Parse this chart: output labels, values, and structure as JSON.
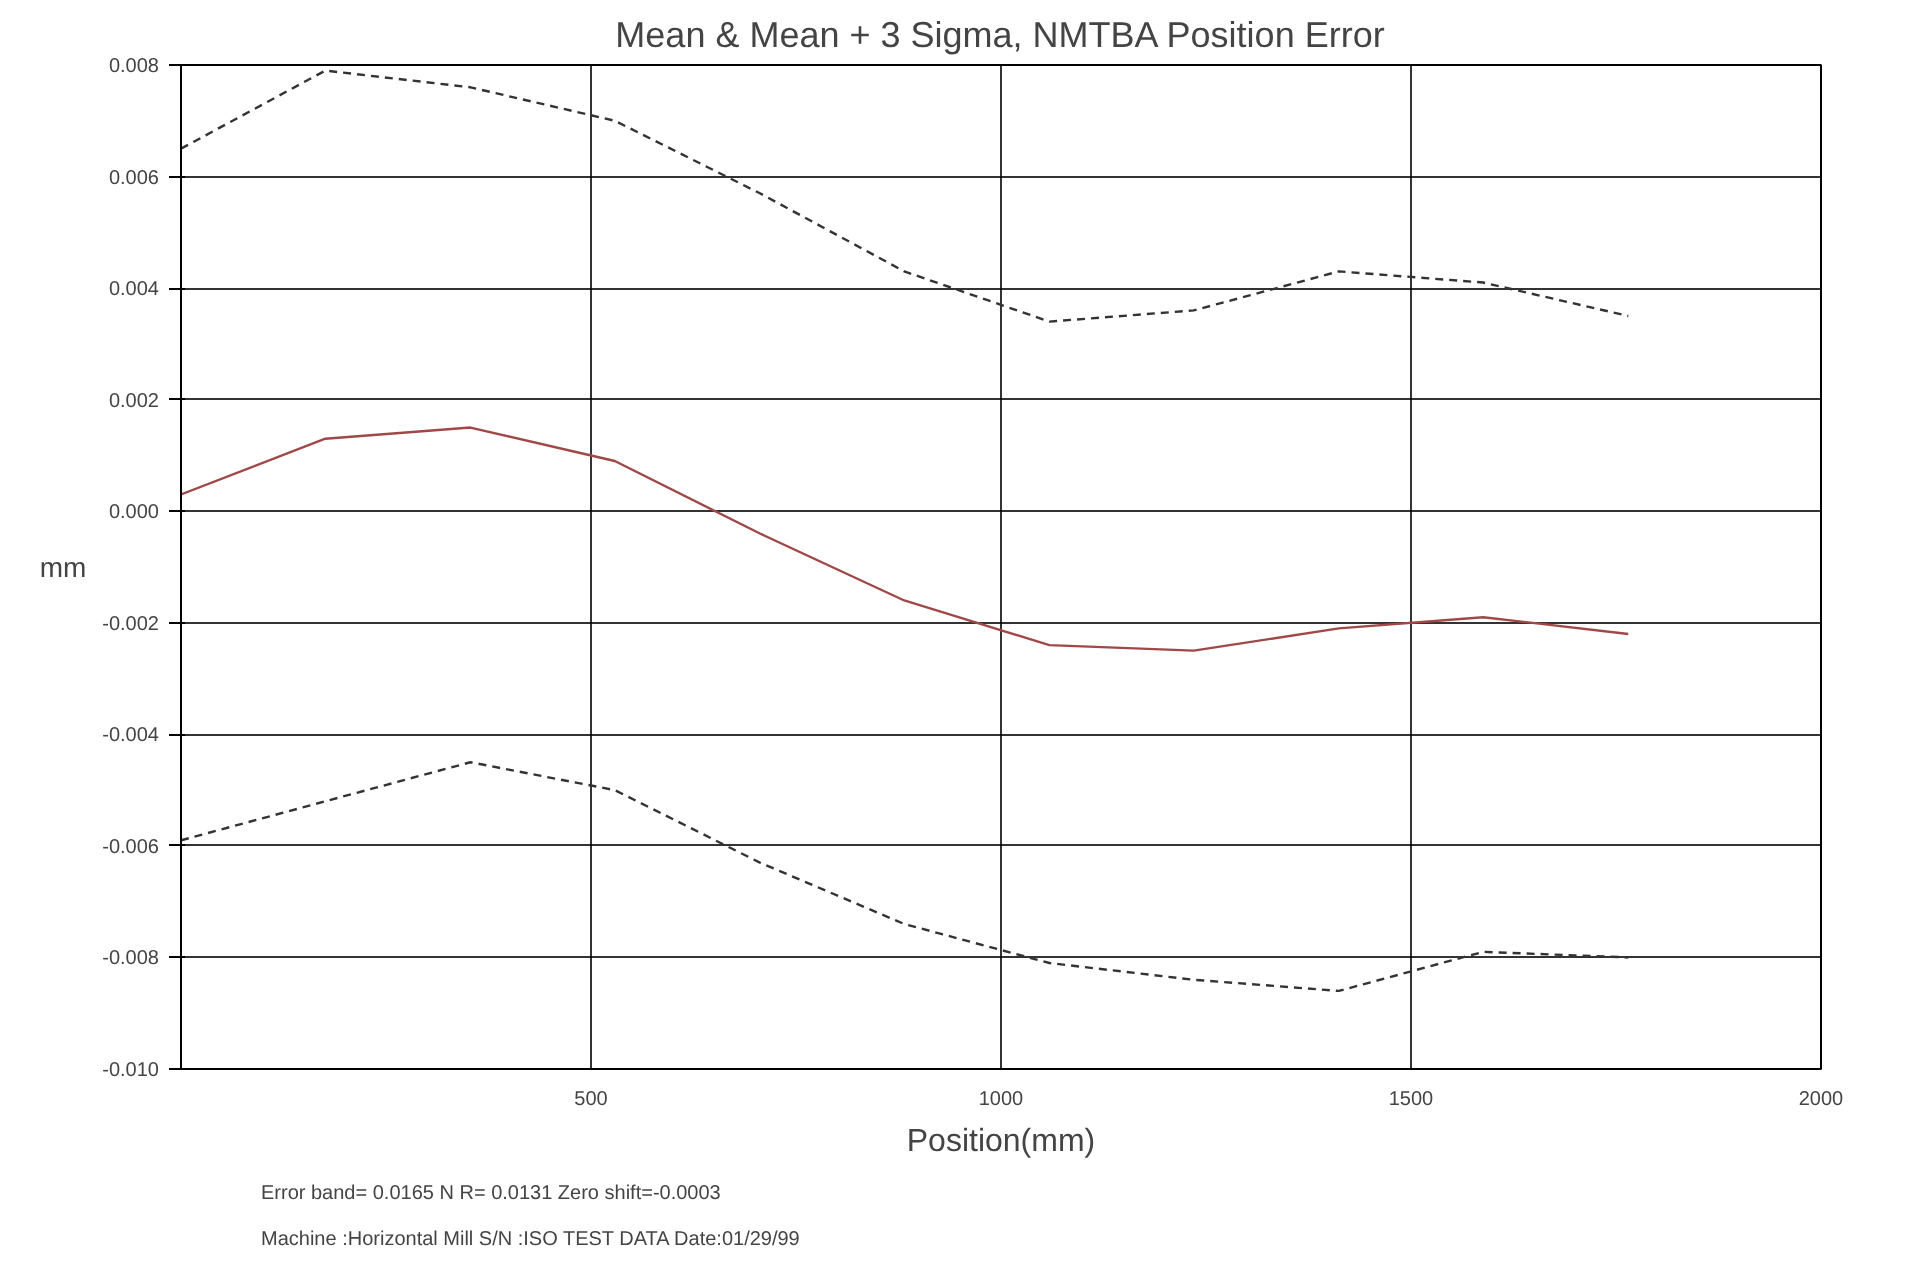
{
  "chart_data": {
    "type": "line",
    "title": "Mean & Mean + 3 Sigma, NMTBA Position Error",
    "xlabel": "Position(mm)",
    "ylabel": "mm",
    "x": [
      0,
      176,
      353,
      529,
      706,
      882,
      1059,
      1235,
      1412,
      1588,
      1765
    ],
    "series": [
      {
        "color": "#333333",
        "line_style": "dashed",
        "values": [
          0.0065,
          0.0079,
          0.0076,
          0.007,
          0.0057,
          0.0043,
          0.0034,
          0.0036,
          0.0043,
          0.0041,
          0.0035
        ]
      },
      {
        "color": "#a04848",
        "line_style": "solid",
        "values": [
          0.0003,
          0.0013,
          0.0015,
          0.0009,
          -0.0004,
          -0.0016,
          -0.0024,
          -0.0025,
          -0.0021,
          -0.0019,
          -0.0022
        ]
      },
      {
        "color": "#333333",
        "line_style": "dashed",
        "values": [
          -0.0059,
          -0.0052,
          -0.0045,
          -0.005,
          -0.0063,
          -0.0074,
          -0.0081,
          -0.0084,
          -0.0086,
          -0.0079,
          -0.008
        ]
      }
    ],
    "xlim": [
      0,
      2000
    ],
    "xticks": [
      500,
      1000,
      1500,
      2000
    ],
    "ylim": [
      -0.01,
      0.008
    ],
    "yticks": [
      {
        "value": -0.01,
        "label": "-0.010"
      },
      {
        "value": -0.008,
        "label": "-0.008"
      },
      {
        "value": -0.006,
        "label": "-0.006"
      },
      {
        "value": -0.004,
        "label": "-0.004"
      },
      {
        "value": -0.002,
        "label": "-0.002"
      },
      {
        "value": 0.0,
        "label": "0.000"
      },
      {
        "value": 0.002,
        "label": "0.002"
      },
      {
        "value": 0.004,
        "label": "0.004"
      },
      {
        "value": 0.006,
        "label": "0.006"
      },
      {
        "value": 0.008,
        "label": "0.008"
      }
    ],
    "grid": true,
    "marker": "none",
    "annotations": [
      "Error band= 0.0165    N R=  0.0131    Zero shift=-0.0003",
      "Machine :Horizontal Mill    S/N :ISO TEST DATA    Date:01/29/99"
    ]
  }
}
